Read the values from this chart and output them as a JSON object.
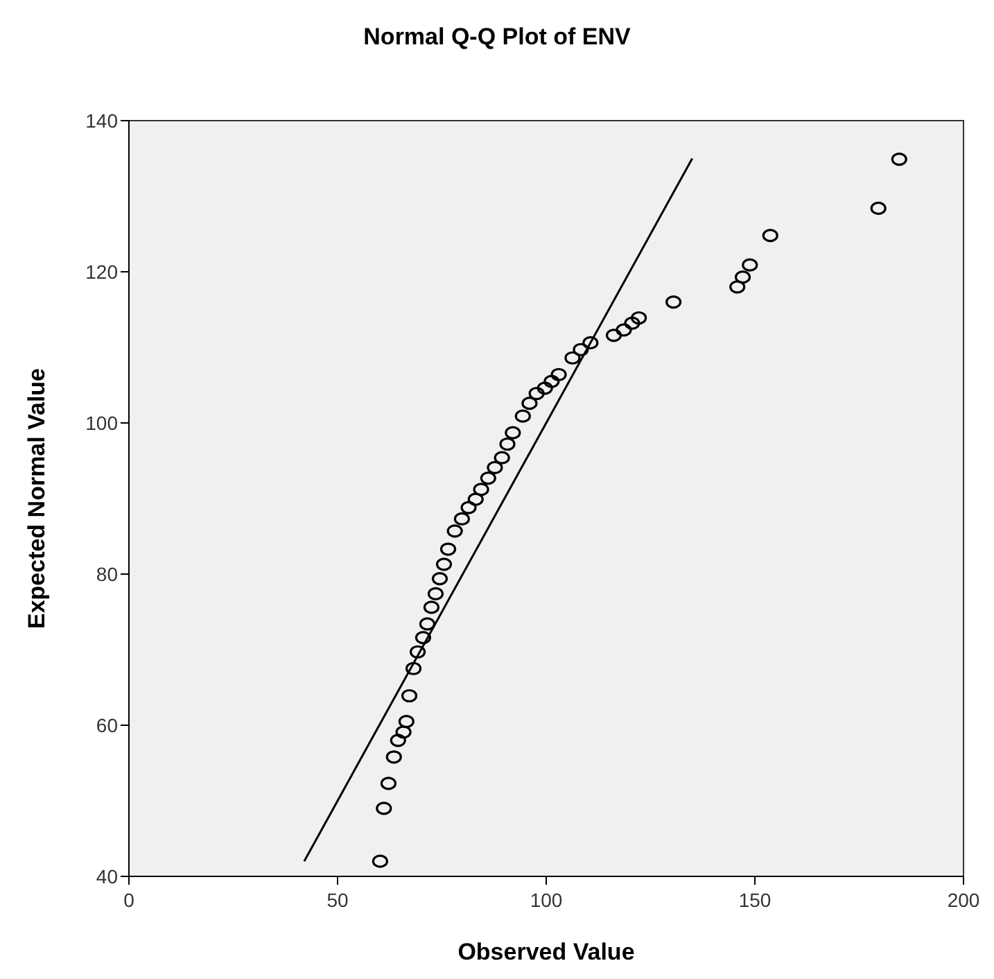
{
  "chart_data": {
    "type": "scatter",
    "title": "Normal Q-Q Plot of ENV",
    "xlabel": "Observed Value",
    "ylabel": "Expected Normal Value",
    "xlim": [
      0,
      200
    ],
    "xticks": [
      0,
      50,
      100,
      150,
      200
    ],
    "ylim": [
      40,
      140
    ],
    "yticks": [
      40,
      60,
      80,
      100,
      120,
      140
    ],
    "grid": false,
    "series": [
      {
        "color": "#000000",
        "marker": "circle",
        "x": [
          60.2,
          61.1,
          62.2,
          63.5,
          64.5,
          65.8,
          66.5,
          67.2,
          68.2,
          69.2,
          70.5,
          71.5,
          72.5,
          73.5,
          74.5,
          75.5,
          76.5,
          78.1,
          79.8,
          81.4,
          83.1,
          84.4,
          86.1,
          87.7,
          89.4,
          90.7,
          92,
          94.4,
          96,
          97.7,
          99.7,
          101.3,
          103,
          106.3,
          108.3,
          110.6,
          116.2,
          118.6,
          120.6,
          122.2,
          130.5,
          145.8,
          147.1,
          148.8,
          153.7,
          179.6,
          184.6
        ],
        "values": [
          42,
          49,
          52.3,
          55.8,
          58,
          59.1,
          60.5,
          63.9,
          67.5,
          69.7,
          71.6,
          73.4,
          75.6,
          77.4,
          79.4,
          81.3,
          83.3,
          85.7,
          87.3,
          88.8,
          89.9,
          91.2,
          92.7,
          94.1,
          95.4,
          97.2,
          98.7,
          100.9,
          102.6,
          103.9,
          104.6,
          105.5,
          106.4,
          108.6,
          109.7,
          110.6,
          111.6,
          112.3,
          113.2,
          113.9,
          116,
          118,
          119.3,
          120.9,
          124.8,
          128.4,
          134.9
        ]
      },
      {
        "type": "line",
        "color": "#000000",
        "line_style": "solid",
        "marker": "none",
        "x": [
          42,
          135
        ],
        "values": [
          42,
          135
        ]
      }
    ]
  }
}
